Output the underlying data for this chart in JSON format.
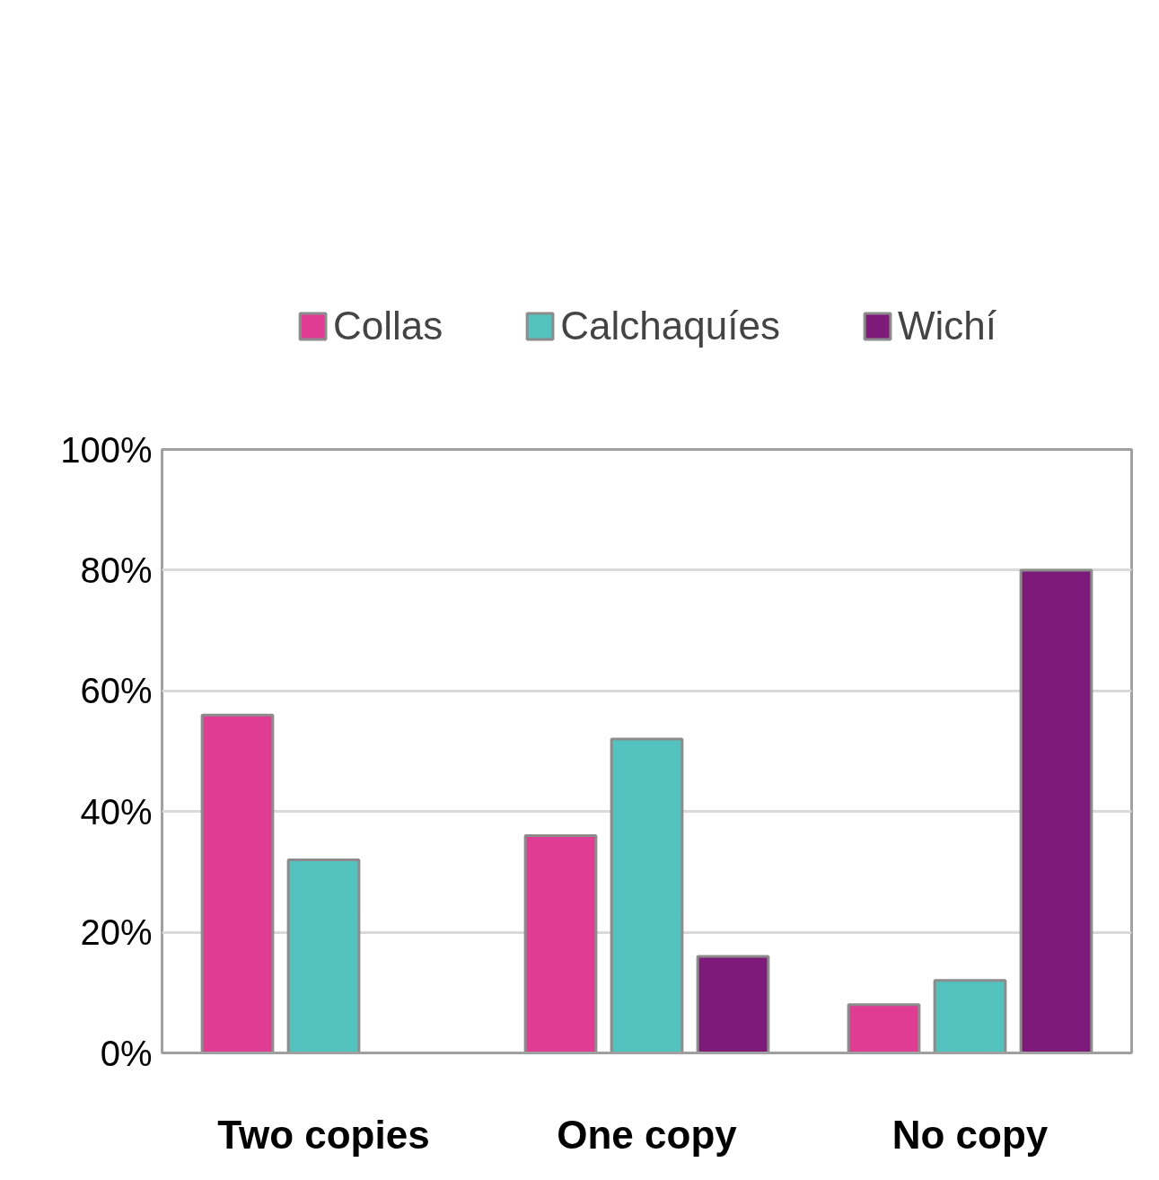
{
  "chart_data": {
    "type": "bar",
    "categories": [
      "Two copies",
      "One copy",
      "No copy"
    ],
    "series": [
      {
        "name": "Collas",
        "color": "#e03c94",
        "values": [
          56,
          36,
          8
        ]
      },
      {
        "name": "Calchaquíes",
        "color": "#52c3bf",
        "values": [
          32,
          52,
          12
        ]
      },
      {
        "name": "Wichí",
        "color": "#7e1a7a",
        "values": [
          null,
          16,
          80
        ]
      }
    ],
    "ylim": [
      0,
      100
    ],
    "yticks": [
      {
        "value": 0,
        "label": "0%"
      },
      {
        "value": 20,
        "label": "20%"
      },
      {
        "value": 40,
        "label": "40%"
      },
      {
        "value": 60,
        "label": "60%"
      },
      {
        "value": 80,
        "label": "80%"
      },
      {
        "value": 100,
        "label": "100%"
      }
    ],
    "grid": "y",
    "legend": "top"
  }
}
